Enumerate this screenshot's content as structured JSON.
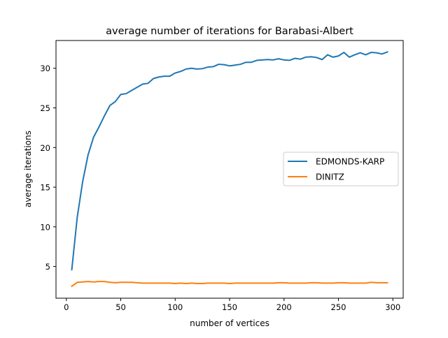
{
  "chart_data": {
    "type": "line",
    "title": "average number of iterations for Barabasi-Albert",
    "xlabel": "number of vertices",
    "ylabel": "average iterations",
    "xlim": [
      -9.5,
      309.5
    ],
    "ylim": [
      1.0,
      33.5
    ],
    "xticks": [
      0,
      50,
      100,
      150,
      200,
      250,
      300
    ],
    "yticks": [
      5,
      10,
      15,
      20,
      25,
      30
    ],
    "grid": false,
    "legend_position": "center-right",
    "x": [
      5,
      10,
      15,
      20,
      25,
      30,
      35,
      40,
      45,
      50,
      55,
      60,
      65,
      70,
      75,
      80,
      85,
      90,
      95,
      100,
      105,
      110,
      115,
      120,
      125,
      130,
      135,
      140,
      145,
      150,
      155,
      160,
      165,
      170,
      175,
      180,
      185,
      190,
      195,
      200,
      205,
      210,
      215,
      220,
      225,
      230,
      235,
      240,
      245,
      250,
      255,
      260,
      265,
      270,
      275,
      280,
      285,
      290,
      295
    ],
    "series": [
      {
        "name": "EDMONDS-KARP",
        "color": "#1f77b4",
        "values": [
          4.6,
          11.2,
          15.7,
          19.1,
          21.3,
          22.6,
          24.0,
          25.3,
          25.8,
          26.7,
          26.8,
          27.2,
          27.6,
          28.0,
          28.1,
          28.7,
          28.9,
          29.0,
          29.0,
          29.4,
          29.6,
          29.9,
          30.0,
          29.9,
          29.95,
          30.15,
          30.2,
          30.5,
          30.45,
          30.3,
          30.4,
          30.5,
          30.75,
          30.75,
          31.0,
          31.05,
          31.1,
          31.05,
          31.2,
          31.05,
          31.0,
          31.25,
          31.15,
          31.4,
          31.45,
          31.35,
          31.1,
          31.7,
          31.4,
          31.55,
          32.0,
          31.4,
          31.7,
          31.95,
          31.7,
          32.0,
          31.95,
          31.8,
          32.05
        ]
      },
      {
        "name": "DINITZ",
        "color": "#ff7f0e",
        "values": [
          2.5,
          3.0,
          3.05,
          3.1,
          3.05,
          3.1,
          3.1,
          3.0,
          2.95,
          3.0,
          3.0,
          3.0,
          2.95,
          2.9,
          2.9,
          2.9,
          2.9,
          2.9,
          2.9,
          2.85,
          2.9,
          2.85,
          2.9,
          2.85,
          2.85,
          2.9,
          2.9,
          2.9,
          2.9,
          2.85,
          2.9,
          2.9,
          2.9,
          2.9,
          2.9,
          2.9,
          2.9,
          2.9,
          2.95,
          2.95,
          2.9,
          2.9,
          2.9,
          2.9,
          2.95,
          2.95,
          2.9,
          2.9,
          2.9,
          2.95,
          2.95,
          2.9,
          2.9,
          2.9,
          2.9,
          3.0,
          2.95,
          2.95,
          2.95
        ]
      }
    ]
  }
}
